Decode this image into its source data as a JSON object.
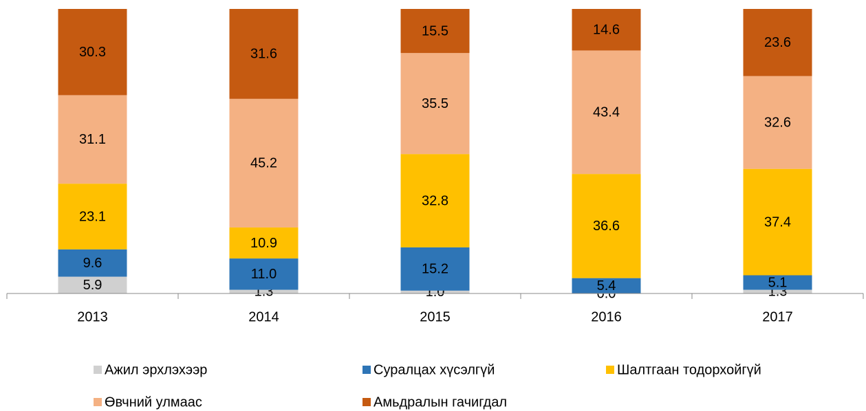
{
  "chart_data": {
    "type": "stacked_bar",
    "categories": [
      "2013",
      "2014",
      "2015",
      "2016",
      "2017"
    ],
    "series": [
      {
        "name": "Ажил эрхлэхээр",
        "color": "#d0d0d0",
        "values": [
          5.9,
          1.3,
          1.0,
          0.0,
          1.3
        ]
      },
      {
        "name": "Суралцах хүсэлгүй",
        "color": "#2e75b6",
        "values": [
          9.6,
          11.0,
          15.2,
          5.4,
          5.1
        ],
        "value_labels": [
          "9.6",
          "11.0",
          "15.2",
          "5.4",
          "5.1"
        ]
      },
      {
        "name": "Шалтгаан тодорхойгүй",
        "color": "#ffc000",
        "values": [
          23.1,
          10.9,
          32.8,
          36.6,
          37.4
        ]
      },
      {
        "name": "Өвчний улмаас",
        "color": "#f4b183",
        "values": [
          31.1,
          45.2,
          35.5,
          43.4,
          32.6
        ]
      },
      {
        "name": "Амьдралын гачигдал",
        "color": "#c55a11",
        "values": [
          30.3,
          31.6,
          15.5,
          14.6,
          23.6
        ]
      }
    ]
  }
}
